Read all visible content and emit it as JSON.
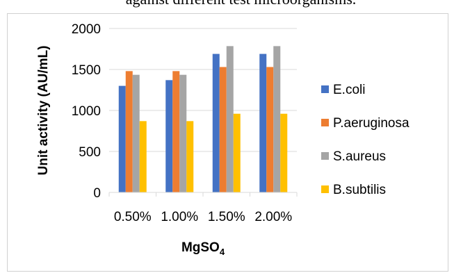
{
  "caption": "against different test microorganisms.",
  "chart_data": {
    "type": "bar",
    "categories": [
      "0.50%",
      "1.00%",
      "1.50%",
      "2.00%"
    ],
    "series": [
      {
        "name": "E.coli",
        "color": "#4472C4",
        "values": [
          1300,
          1370,
          1690,
          1690
        ]
      },
      {
        "name": "P.aeruginosa",
        "color": "#ED7D31",
        "values": [
          1480,
          1480,
          1530,
          1530
        ]
      },
      {
        "name": "S.aureus",
        "color": "#A5A5A5",
        "values": [
          1435,
          1435,
          1785,
          1785
        ]
      },
      {
        "name": "B.subtilis",
        "color": "#FFC000",
        "values": [
          870,
          870,
          960,
          960
        ]
      }
    ],
    "xlabel": "MgSO",
    "xlabel_subscript": "4",
    "ylabel": "Unit activity (AU/mL)",
    "ylim": [
      0,
      2000
    ],
    "yticks": [
      0,
      500,
      1000,
      1500,
      2000
    ],
    "ytick_labels": [
      "0",
      "500",
      "1000",
      "1500",
      "2000"
    ],
    "grid": true,
    "legend_position": "right"
  }
}
